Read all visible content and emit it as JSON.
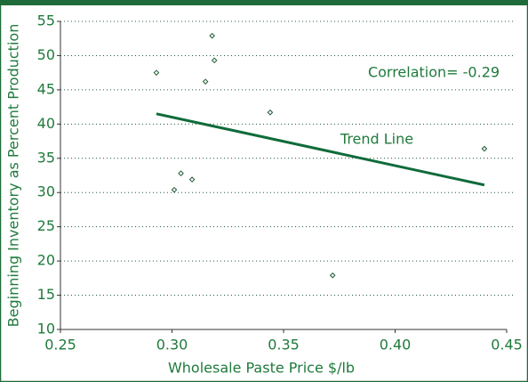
{
  "chart_data": {
    "type": "scatter",
    "x_label": "Wholesale Paste Price  $/lb",
    "y_label": "Beginning Inventory as Percent Production",
    "xlim": [
      0.25,
      0.45
    ],
    "xticks": [
      {
        "value": 0.25,
        "label": "0.25"
      },
      {
        "value": 0.3,
        "label": "0.30"
      },
      {
        "value": 0.35,
        "label": "0.35"
      },
      {
        "value": 0.4,
        "label": "0.40"
      },
      {
        "value": 0.45,
        "label": "0.45"
      }
    ],
    "ylim": [
      10,
      55
    ],
    "yticks": [
      10,
      15,
      20,
      25,
      30,
      35,
      40,
      45,
      50,
      55
    ],
    "grid": true,
    "points": {
      "color": "#1f5a35",
      "x": [
        0.293,
        0.318,
        0.319,
        0.315,
        0.344,
        0.44,
        0.304,
        0.309,
        0.301,
        0.372
      ],
      "values": [
        47.5,
        52.9,
        49.3,
        46.2,
        41.7,
        36.4,
        32.8,
        31.9,
        30.4,
        17.9
      ]
    },
    "trend_line": {
      "color": "#0f6b3a",
      "x": [
        0.293,
        0.44
      ],
      "values": [
        41.5,
        31.1
      ]
    },
    "annotations": [
      "Correlation= -0.29",
      "Trend Line"
    ]
  }
}
